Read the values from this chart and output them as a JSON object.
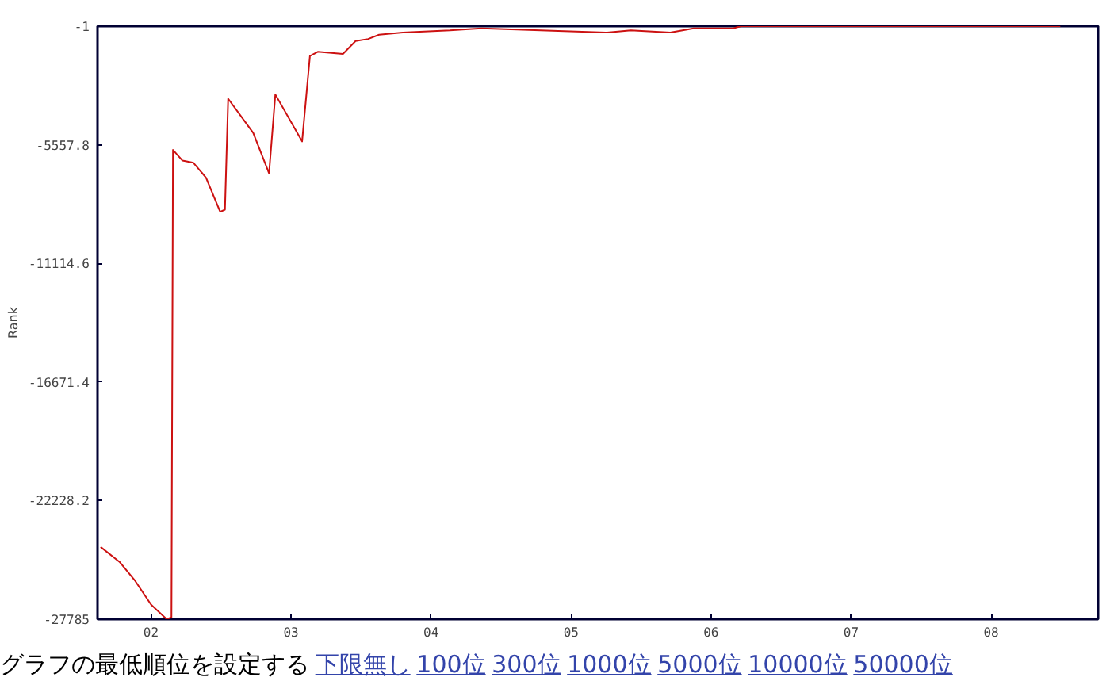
{
  "chart_data": {
    "type": "line",
    "ylabel": "Rank",
    "x": [
      1.64,
      1.775,
      1.888,
      2.0,
      2.112,
      2.146,
      2.157,
      2.225,
      2.303,
      2.393,
      2.494,
      2.528,
      2.551,
      2.674,
      2.73,
      2.843,
      2.888,
      3.079,
      3.135,
      3.191,
      3.371,
      3.461,
      3.551,
      3.629,
      3.798,
      4.135,
      4.36,
      5.258,
      5.427,
      5.708,
      5.876,
      6.157,
      6.213,
      8.494
    ],
    "series": [
      {
        "color": "#cc1111",
        "values": [
          -24400,
          -25100,
          -26000,
          -27100,
          -27785,
          -27700,
          -5800,
          -6300,
          -6400,
          -7100,
          -8700,
          -8600,
          -3400,
          -4500,
          -5000,
          -6900,
          -3200,
          -5400,
          -1400,
          -1200,
          -1300,
          -700,
          -600,
          -400,
          -300,
          -200,
          -100,
          -300,
          -200,
          -300,
          -100,
          -100,
          -1,
          -1
        ]
      }
    ],
    "xlim": [
      1.618,
      8.764
    ],
    "ylim": [
      -27785,
      -1
    ],
    "xticks": [
      {
        "value": 2,
        "label": "02"
      },
      {
        "value": 3,
        "label": "03"
      },
      {
        "value": 4,
        "label": "04"
      },
      {
        "value": 5,
        "label": "05"
      },
      {
        "value": 6,
        "label": "06"
      },
      {
        "value": 7,
        "label": "07"
      },
      {
        "value": 8,
        "label": "08"
      }
    ],
    "yticks": [
      -1,
      -5557.8,
      -11114.6,
      -16671.4,
      -22228.2,
      -27785
    ],
    "grid": false,
    "annotations": [
      "グラフの最低順位を設定する",
      "下限無し",
      "100位",
      "300位",
      "1000位",
      "5000位",
      "10000位",
      "50000位"
    ]
  }
}
